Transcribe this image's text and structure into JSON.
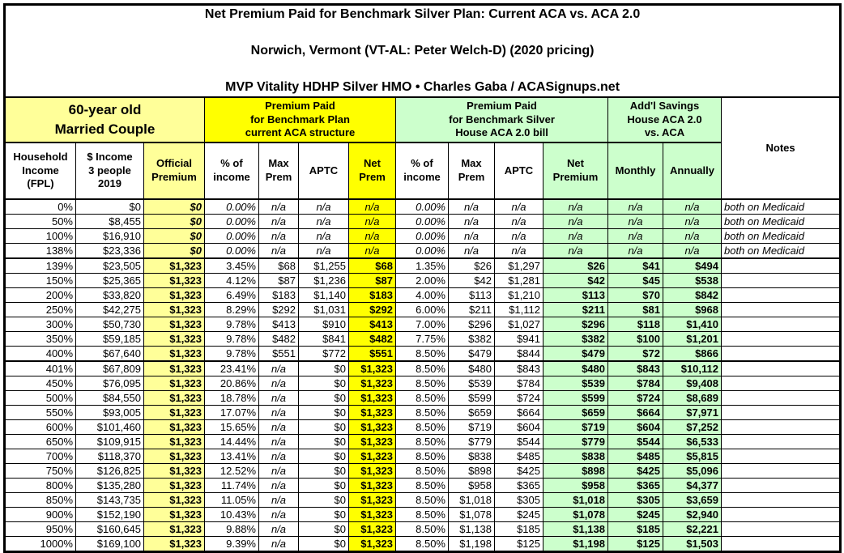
{
  "title": {
    "line1": "Net Premium Paid for Benchmark Silver Plan: Current ACA vs. ACA 2.0",
    "line2": "Norwich, Vermont (VT-AL: Peter Welch-D) (2020 pricing)",
    "line3": "MVP Vitality HDHP Silver HMO • Charles Gaba / ACASignups.net"
  },
  "colors": {
    "light_yellow": "#FFFF99",
    "bright_yellow": "#FFFF00",
    "light_green": "#CCFFCC",
    "border": "#000000",
    "background": "#FFFFFF"
  },
  "header_groups": [
    {
      "name": "demographic-group",
      "label": "60-year old\nMarried Couple",
      "span": 3,
      "style": "ly",
      "large": true
    },
    {
      "name": "current-aca-group",
      "label": "Premium Paid\nfor Benchmark Plan\ncurrent ACA structure",
      "span": 4,
      "style": "y"
    },
    {
      "name": "aca2-group",
      "label": "Premium Paid\nfor Benchmark Silver\nHouse ACA 2.0 bill",
      "span": 4,
      "style": "g"
    },
    {
      "name": "savings-group",
      "label": "Add'l Savings\nHouse ACA 2.0\nvs. ACA",
      "span": 2,
      "style": "g"
    },
    {
      "name": "notes-group",
      "label": "Notes",
      "span": 1,
      "rowspan": 2,
      "style": ""
    }
  ],
  "column_headers": [
    "Household\nIncome\n(FPL)",
    "$ Income\n3 people\n2019",
    "Official\nPremium",
    "% of\nincome",
    "Max\nPrem",
    "APTC",
    "Net\nPrem",
    "% of\nincome",
    "Max\nPrem",
    "APTC",
    "Net\nPremium",
    "Monthly",
    "Annually"
  ],
  "rows": [
    [
      "0%",
      "$0",
      "$0",
      "0.00%",
      "n/a",
      "n/a",
      "n/a",
      "0.00%",
      "n/a",
      "n/a",
      "n/a",
      "n/a",
      "n/a",
      "both on Medicaid"
    ],
    [
      "50%",
      "$8,455",
      "$0",
      "0.00%",
      "n/a",
      "n/a",
      "n/a",
      "0.00%",
      "n/a",
      "n/a",
      "n/a",
      "n/a",
      "n/a",
      "both on Medicaid"
    ],
    [
      "100%",
      "$16,910",
      "$0",
      "0.00%",
      "n/a",
      "n/a",
      "n/a",
      "0.00%",
      "n/a",
      "n/a",
      "n/a",
      "n/a",
      "n/a",
      "both on Medicaid"
    ],
    [
      "138%",
      "$23,336",
      "$0",
      "0.00%",
      "n/a",
      "n/a",
      "n/a",
      "0.00%",
      "n/a",
      "n/a",
      "n/a",
      "n/a",
      "n/a",
      "both on Medicaid"
    ],
    [
      "139%",
      "$23,505",
      "$1,323",
      "3.45%",
      "$68",
      "$1,255",
      "$68",
      "1.35%",
      "$26",
      "$1,297",
      "$26",
      "$41",
      "$494",
      ""
    ],
    [
      "150%",
      "$25,365",
      "$1,323",
      "4.12%",
      "$87",
      "$1,236",
      "$87",
      "2.00%",
      "$42",
      "$1,281",
      "$42",
      "$45",
      "$538",
      ""
    ],
    [
      "200%",
      "$33,820",
      "$1,323",
      "6.49%",
      "$183",
      "$1,140",
      "$183",
      "4.00%",
      "$113",
      "$1,210",
      "$113",
      "$70",
      "$842",
      ""
    ],
    [
      "250%",
      "$42,275",
      "$1,323",
      "8.29%",
      "$292",
      "$1,031",
      "$292",
      "6.00%",
      "$211",
      "$1,112",
      "$211",
      "$81",
      "$968",
      ""
    ],
    [
      "300%",
      "$50,730",
      "$1,323",
      "9.78%",
      "$413",
      "$910",
      "$413",
      "7.00%",
      "$296",
      "$1,027",
      "$296",
      "$118",
      "$1,410",
      ""
    ],
    [
      "350%",
      "$59,185",
      "$1,323",
      "9.78%",
      "$482",
      "$841",
      "$482",
      "7.75%",
      "$382",
      "$941",
      "$382",
      "$100",
      "$1,201",
      ""
    ],
    [
      "400%",
      "$67,640",
      "$1,323",
      "9.78%",
      "$551",
      "$772",
      "$551",
      "8.50%",
      "$479",
      "$844",
      "$479",
      "$72",
      "$866",
      ""
    ],
    [
      "401%",
      "$67,809",
      "$1,323",
      "23.41%",
      "n/a",
      "$0",
      "$1,323",
      "8.50%",
      "$480",
      "$843",
      "$480",
      "$843",
      "$10,112",
      ""
    ],
    [
      "450%",
      "$76,095",
      "$1,323",
      "20.86%",
      "n/a",
      "$0",
      "$1,323",
      "8.50%",
      "$539",
      "$784",
      "$539",
      "$784",
      "$9,408",
      ""
    ],
    [
      "500%",
      "$84,550",
      "$1,323",
      "18.78%",
      "n/a",
      "$0",
      "$1,323",
      "8.50%",
      "$599",
      "$724",
      "$599",
      "$724",
      "$8,689",
      ""
    ],
    [
      "550%",
      "$93,005",
      "$1,323",
      "17.07%",
      "n/a",
      "$0",
      "$1,323",
      "8.50%",
      "$659",
      "$664",
      "$659",
      "$664",
      "$7,971",
      ""
    ],
    [
      "600%",
      "$101,460",
      "$1,323",
      "15.65%",
      "n/a",
      "$0",
      "$1,323",
      "8.50%",
      "$719",
      "$604",
      "$719",
      "$604",
      "$7,252",
      ""
    ],
    [
      "650%",
      "$109,915",
      "$1,323",
      "14.44%",
      "n/a",
      "$0",
      "$1,323",
      "8.50%",
      "$779",
      "$544",
      "$779",
      "$544",
      "$6,533",
      ""
    ],
    [
      "700%",
      "$118,370",
      "$1,323",
      "13.41%",
      "n/a",
      "$0",
      "$1,323",
      "8.50%",
      "$838",
      "$485",
      "$838",
      "$485",
      "$5,815",
      ""
    ],
    [
      "750%",
      "$126,825",
      "$1,323",
      "12.52%",
      "n/a",
      "$0",
      "$1,323",
      "8.50%",
      "$898",
      "$425",
      "$898",
      "$425",
      "$5,096",
      ""
    ],
    [
      "800%",
      "$135,280",
      "$1,323",
      "11.74%",
      "n/a",
      "$0",
      "$1,323",
      "8.50%",
      "$958",
      "$365",
      "$958",
      "$365",
      "$4,377",
      ""
    ],
    [
      "850%",
      "$143,735",
      "$1,323",
      "11.05%",
      "n/a",
      "$0",
      "$1,323",
      "8.50%",
      "$1,018",
      "$305",
      "$1,018",
      "$305",
      "$3,659",
      ""
    ],
    [
      "900%",
      "$152,190",
      "$1,323",
      "10.43%",
      "n/a",
      "$0",
      "$1,323",
      "8.50%",
      "$1,078",
      "$245",
      "$1,078",
      "$245",
      "$2,940",
      ""
    ],
    [
      "950%",
      "$160,645",
      "$1,323",
      "9.88%",
      "n/a",
      "$0",
      "$1,323",
      "8.50%",
      "$1,138",
      "$185",
      "$1,138",
      "$185",
      "$2,221",
      ""
    ],
    [
      "1000%",
      "$169,100",
      "$1,323",
      "9.39%",
      "n/a",
      "$0",
      "$1,323",
      "8.50%",
      "$1,198",
      "$125",
      "$1,198",
      "$125",
      "$1,503",
      ""
    ]
  ]
}
